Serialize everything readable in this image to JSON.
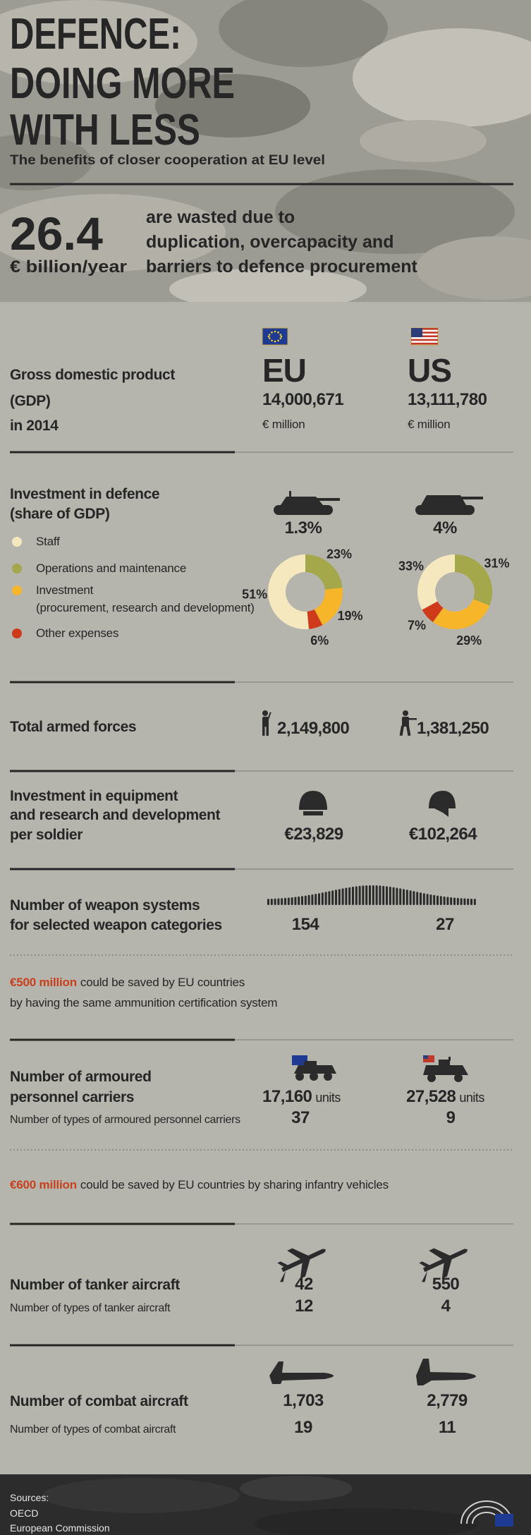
{
  "header": {
    "title": [
      "DEFENCE:",
      "DOING MORE",
      "WITH LESS"
    ],
    "subtitle": "The benefits of closer cooperation at EU level",
    "figure": "26.4",
    "unit": "€ billion/year",
    "text": [
      "are wasted due to",
      "duplication, overcapacity and",
      "barriers to defence procurement"
    ]
  },
  "gdp": {
    "label": [
      "Gross domestic product",
      "(GDP)",
      "in 2014"
    ],
    "eu": {
      "name": "EU",
      "value": "14,000,671",
      "unit": "€ million"
    },
    "us": {
      "name": "US",
      "value": "13,111,780",
      "unit": "€ million"
    }
  },
  "investment": {
    "label": [
      "Investment in defence",
      "(share of GDP)"
    ],
    "legend": [
      {
        "label": "Staff"
      },
      {
        "label": "Operations and maintenance"
      },
      {
        "label": "Investment",
        "note": "(procurement, research and development)"
      },
      {
        "label": "Other expenses"
      }
    ],
    "colors": [
      "#f5e8bf",
      "#a4a84a",
      "#f7b52a",
      "#cf3a1b"
    ],
    "eu": {
      "share": "1.3%"
    },
    "us": {
      "share": "4%"
    }
  },
  "chart_data": [
    {
      "type": "pie",
      "values": [
        51,
        23,
        19,
        6
      ],
      "value_labels": [
        "51%",
        "23%",
        "19%",
        "6%"
      ]
    },
    {
      "type": "pie",
      "values": [
        33,
        31,
        29,
        7
      ],
      "value_labels": [
        "33%",
        "31%",
        "29%",
        "7%"
      ]
    }
  ],
  "forces": {
    "label": "Total armed forces",
    "eu": "2,149,800",
    "us": "1,381,250"
  },
  "equipment": {
    "label": [
      "Investment in equipment",
      "and research and development",
      "per soldier"
    ],
    "eu": "€23,829",
    "us": "€102,264"
  },
  "weapons": {
    "label": [
      "Number of weapon systems",
      "for selected weapon categories"
    ],
    "eu": "154",
    "us": "27"
  },
  "note_ammo": {
    "highlight": "€500 million",
    "text": [
      "could be saved by EU countries",
      "by having the same ammunition certification system"
    ]
  },
  "apc": {
    "label": [
      "Number of armoured",
      "personnel carriers"
    ],
    "eu": {
      "value": "17,160",
      "unit": "units"
    },
    "us": {
      "value": "27,528",
      "unit": "units"
    },
    "types_label": "Number of types of armoured personnel carriers",
    "eu_types": "37",
    "us_types": "9"
  },
  "note_vehicles": {
    "highlight": "€600 million",
    "text": "could be saved by EU countries by sharing infantry vehicles"
  },
  "tanker": {
    "label": "Number of tanker aircraft",
    "eu": "42",
    "us": "550",
    "types_label": "Number of types of tanker aircraft",
    "eu_types": "12",
    "us_types": "4"
  },
  "combat": {
    "label": "Number of combat aircraft",
    "eu": "1,703",
    "us": "2,779",
    "types_label": "Number of types of combat aircraft",
    "eu_types": "19",
    "us_types": "11"
  },
  "sources": {
    "title": "Sources:",
    "items": [
      "OECD",
      "European Commission"
    ]
  }
}
